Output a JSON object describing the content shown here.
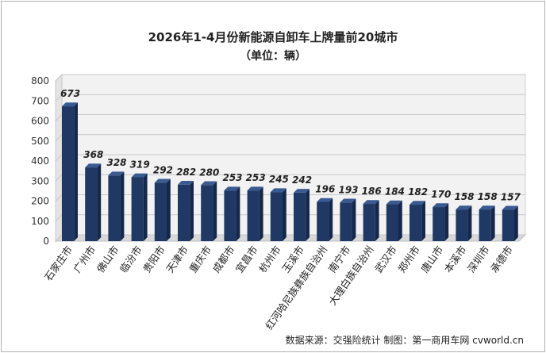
{
  "chart_data": {
    "type": "bar",
    "title": "2026年1-4月份新能源自卸车上牌量前20城市",
    "subtitle": "（单位：辆）",
    "categories": [
      "石家庄市",
      "广州市",
      "佛山市",
      "临汾市",
      "贵阳市",
      "天津市",
      "重庆市",
      "成都市",
      "宜昌市",
      "杭州市",
      "玉溪市",
      "红河哈尼族彝族自治州",
      "南宁市",
      "大理白族自治州",
      "武汉市",
      "郑州市",
      "唐山市",
      "本溪市",
      "深圳市",
      "承德市"
    ],
    "values": [
      673,
      368,
      328,
      319,
      292,
      282,
      280,
      253,
      253,
      245,
      242,
      196,
      193,
      186,
      184,
      182,
      170,
      158,
      158,
      157
    ],
    "ylim": [
      0,
      800
    ],
    "yticks": [
      0,
      100,
      200,
      300,
      400,
      500,
      600,
      700,
      800
    ],
    "grid": true,
    "legend": "none",
    "colors": {
      "bar_front": "#1f3864",
      "bar_side": "#15274a",
      "bar_top": "#3a5a92",
      "wall": "#f2f2f2",
      "grid": "#c8c8c8"
    }
  },
  "source": "数据来源：交强险统计  制图：第一商用车网 cvworld.cn"
}
